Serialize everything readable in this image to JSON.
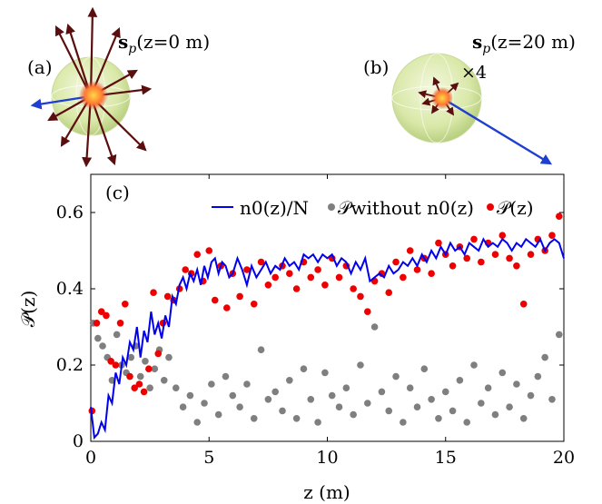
{
  "panel_a": {
    "tag": "(a)",
    "title": "s",
    "title_sub": "p",
    "title_rest": "(z=0 m)"
  },
  "panel_b": {
    "tag": "(b)",
    "title": "s",
    "title_sub": "p",
    "title_rest": "(z=20 m)",
    "scale_note": "×4"
  },
  "colors": {
    "line": "#0000ee",
    "gray": "#7f7f7f",
    "red": "#ee0000",
    "sphere": "#d9e8a8",
    "arrow_dark": "#6b0f0f",
    "arrow_blue": "#1f3fcf"
  },
  "chart_data": {
    "type": "line",
    "panel_label": "(c)",
    "xlabel": "z (m)",
    "ylabel": "𝒫(z)",
    "xlim": [
      0,
      20
    ],
    "ylim": [
      0,
      0.7
    ],
    "xticks": [
      0,
      5,
      10,
      15,
      20
    ],
    "yticks": [
      0,
      0.2,
      0.4,
      0.6
    ],
    "legend_position": "top-right",
    "series": [
      {
        "name": "n0(z)/N",
        "kind": "line",
        "x": [
          0,
          0.15,
          0.3,
          0.45,
          0.6,
          0.75,
          0.9,
          1.05,
          1.2,
          1.35,
          1.5,
          1.65,
          1.8,
          1.95,
          2.1,
          2.25,
          2.4,
          2.55,
          2.7,
          2.85,
          3.0,
          3.15,
          3.3,
          3.45,
          3.6,
          3.75,
          3.9,
          4.05,
          4.2,
          4.35,
          4.5,
          4.65,
          4.8,
          4.95,
          5.1,
          5.25,
          5.4,
          5.55,
          5.7,
          5.85,
          6.0,
          6.2,
          6.4,
          6.6,
          6.8,
          7.0,
          7.2,
          7.4,
          7.6,
          7.8,
          8.0,
          8.2,
          8.4,
          8.6,
          8.8,
          9.0,
          9.2,
          9.4,
          9.6,
          9.8,
          10.0,
          10.2,
          10.4,
          10.6,
          10.8,
          11.0,
          11.2,
          11.4,
          11.6,
          11.8,
          12.0,
          12.2,
          12.4,
          12.6,
          12.8,
          13.0,
          13.2,
          13.4,
          13.6,
          13.8,
          14.0,
          14.2,
          14.4,
          14.6,
          14.8,
          15.0,
          15.2,
          15.4,
          15.6,
          15.8,
          16.0,
          16.2,
          16.4,
          16.6,
          16.8,
          17.0,
          17.2,
          17.4,
          17.6,
          17.8,
          18.0,
          18.2,
          18.4,
          18.6,
          18.8,
          19.0,
          19.2,
          19.4,
          19.6,
          19.8,
          20.0
        ],
        "y": [
          0.09,
          0.01,
          0.02,
          0.05,
          0.03,
          0.12,
          0.1,
          0.18,
          0.15,
          0.22,
          0.2,
          0.26,
          0.24,
          0.3,
          0.22,
          0.29,
          0.26,
          0.34,
          0.28,
          0.31,
          0.27,
          0.33,
          0.3,
          0.38,
          0.36,
          0.41,
          0.43,
          0.4,
          0.44,
          0.42,
          0.45,
          0.41,
          0.46,
          0.43,
          0.47,
          0.48,
          0.44,
          0.47,
          0.46,
          0.43,
          0.44,
          0.48,
          0.45,
          0.41,
          0.46,
          0.43,
          0.45,
          0.47,
          0.44,
          0.46,
          0.45,
          0.48,
          0.46,
          0.47,
          0.45,
          0.49,
          0.48,
          0.49,
          0.47,
          0.49,
          0.48,
          0.49,
          0.46,
          0.48,
          0.47,
          0.44,
          0.47,
          0.45,
          0.48,
          0.42,
          0.43,
          0.44,
          0.43,
          0.46,
          0.44,
          0.45,
          0.47,
          0.46,
          0.48,
          0.46,
          0.49,
          0.47,
          0.5,
          0.48,
          0.51,
          0.49,
          0.52,
          0.5,
          0.51,
          0.49,
          0.52,
          0.51,
          0.5,
          0.53,
          0.51,
          0.52,
          0.51,
          0.53,
          0.52,
          0.5,
          0.52,
          0.51,
          0.53,
          0.52,
          0.51,
          0.53,
          0.5,
          0.52,
          0.53,
          0.52,
          0.48
        ]
      },
      {
        "name": "𝒫without n0(z)",
        "kind": "scatter",
        "x": [
          0.1,
          0.3,
          0.5,
          0.7,
          0.9,
          1.1,
          1.3,
          1.5,
          1.7,
          1.9,
          2.1,
          2.3,
          2.5,
          2.7,
          2.9,
          3.1,
          3.3,
          3.6,
          3.9,
          4.2,
          4.5,
          4.8,
          5.1,
          5.4,
          5.7,
          6.0,
          6.3,
          6.6,
          6.9,
          7.2,
          7.5,
          7.8,
          8.1,
          8.4,
          8.7,
          9.0,
          9.3,
          9.6,
          9.9,
          10.2,
          10.5,
          10.8,
          11.1,
          11.4,
          11.7,
          12.0,
          12.3,
          12.6,
          12.9,
          13.2,
          13.5,
          13.8,
          14.1,
          14.4,
          14.7,
          15.0,
          15.3,
          15.6,
          15.9,
          16.2,
          16.5,
          16.8,
          17.1,
          17.4,
          17.7,
          18.0,
          18.3,
          18.6,
          18.9,
          19.2,
          19.5,
          19.8
        ],
        "y": [
          0.31,
          0.27,
          0.25,
          0.22,
          0.16,
          0.28,
          0.2,
          0.18,
          0.22,
          0.25,
          0.17,
          0.21,
          0.14,
          0.19,
          0.24,
          0.16,
          0.22,
          0.14,
          0.09,
          0.12,
          0.05,
          0.1,
          0.15,
          0.07,
          0.17,
          0.12,
          0.09,
          0.15,
          0.06,
          0.24,
          0.11,
          0.13,
          0.08,
          0.16,
          0.06,
          0.19,
          0.11,
          0.05,
          0.18,
          0.12,
          0.09,
          0.14,
          0.07,
          0.2,
          0.1,
          0.3,
          0.13,
          0.08,
          0.17,
          0.05,
          0.14,
          0.09,
          0.19,
          0.11,
          0.06,
          0.13,
          0.08,
          0.16,
          0.05,
          0.2,
          0.1,
          0.14,
          0.07,
          0.18,
          0.09,
          0.15,
          0.06,
          0.12,
          0.17,
          0.22,
          0.11,
          0.28
        ]
      },
      {
        "name": "𝒫(z)",
        "kind": "scatter",
        "x": [
          0.05,
          0.25,
          0.45,
          0.65,
          0.85,
          1.05,
          1.25,
          1.45,
          1.65,
          1.85,
          2.05,
          2.25,
          2.45,
          2.65,
          2.85,
          3.05,
          3.25,
          3.5,
          3.75,
          4.0,
          4.25,
          4.5,
          4.75,
          5.0,
          5.25,
          5.5,
          5.75,
          6.0,
          6.3,
          6.6,
          6.9,
          7.2,
          7.5,
          7.8,
          8.1,
          8.4,
          8.7,
          9.0,
          9.3,
          9.6,
          9.9,
          10.2,
          10.5,
          10.8,
          11.1,
          11.4,
          11.7,
          12.0,
          12.3,
          12.6,
          12.9,
          13.2,
          13.5,
          13.8,
          14.1,
          14.4,
          14.7,
          15.0,
          15.3,
          15.6,
          15.9,
          16.2,
          16.5,
          16.8,
          17.1,
          17.4,
          17.7,
          18.0,
          18.3,
          18.6,
          18.9,
          19.2,
          19.5,
          19.8
        ],
        "y": [
          0.08,
          0.31,
          0.34,
          0.33,
          0.21,
          0.2,
          0.31,
          0.36,
          0.17,
          0.14,
          0.15,
          0.13,
          0.19,
          0.39,
          0.23,
          0.31,
          0.38,
          0.37,
          0.4,
          0.45,
          0.44,
          0.49,
          0.42,
          0.5,
          0.37,
          0.46,
          0.35,
          0.44,
          0.38,
          0.45,
          0.36,
          0.47,
          0.41,
          0.43,
          0.46,
          0.44,
          0.4,
          0.47,
          0.43,
          0.45,
          0.41,
          0.48,
          0.43,
          0.46,
          0.4,
          0.38,
          0.34,
          0.42,
          0.44,
          0.39,
          0.47,
          0.43,
          0.5,
          0.45,
          0.48,
          0.44,
          0.52,
          0.49,
          0.46,
          0.51,
          0.48,
          0.53,
          0.47,
          0.52,
          0.49,
          0.54,
          0.48,
          0.46,
          0.36,
          0.49,
          0.53,
          0.5,
          0.54,
          0.59
        ]
      }
    ]
  }
}
